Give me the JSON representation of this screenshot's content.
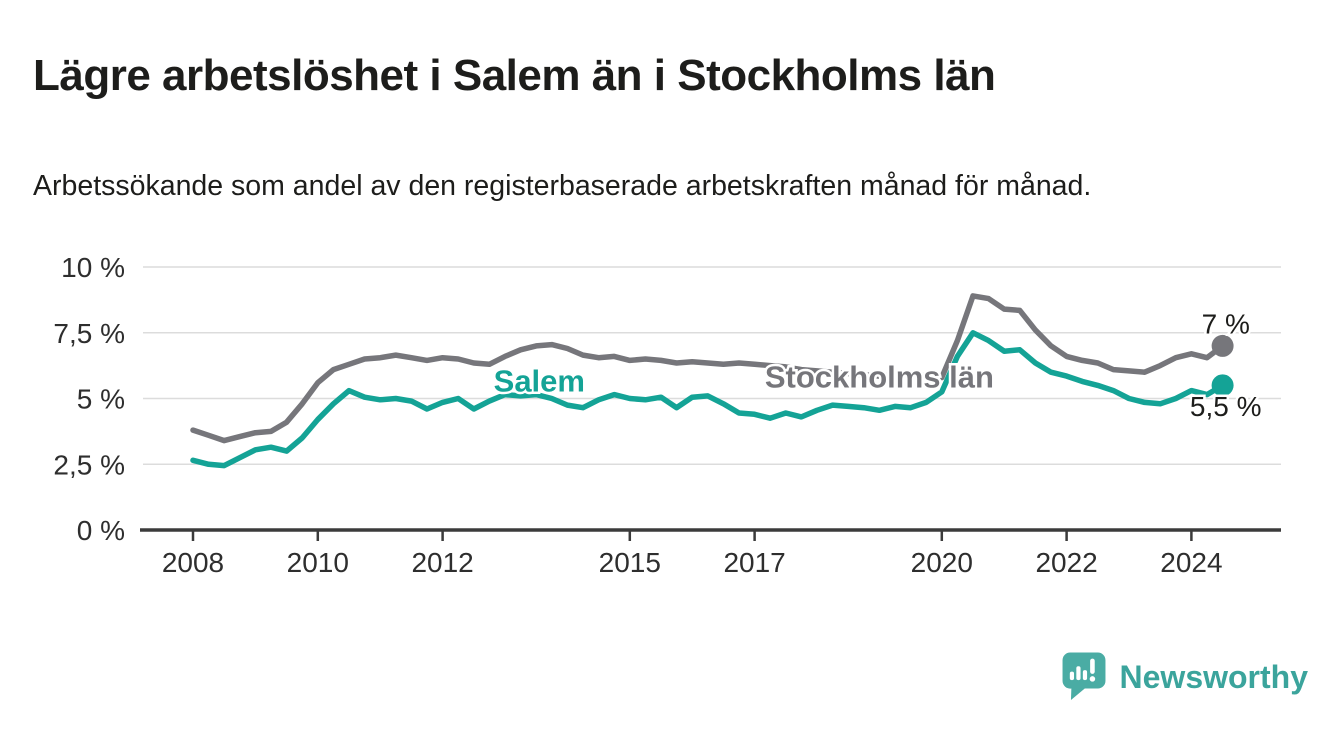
{
  "header": {
    "title": "Lägre arbetslöshet i Salem än i Stockholms län",
    "subtitle": "Arbetssökande som andel av den registerbaserade arbetskraften månad för månad."
  },
  "colors": {
    "salem": "#14a396",
    "stockholm": "#76767b",
    "text_dark": "#1d1d1b",
    "axis_text": "#2e2e2e",
    "gridline": "#dcdcdc",
    "axis_line": "#3b3b3b",
    "brand_teal": "#3ba49c",
    "brand_mark": "#4aaca4"
  },
  "chart_data": {
    "type": "line",
    "title": "",
    "xlabel": "",
    "ylabel": "",
    "unit": "%",
    "ylim": [
      0,
      10
    ],
    "grid": "horizontal",
    "legend_position": "inline-labels",
    "x": [
      2008,
      2008.25,
      2008.5,
      2008.75,
      2009,
      2009.25,
      2009.5,
      2009.75,
      2010,
      2010.25,
      2010.5,
      2010.75,
      2011,
      2011.25,
      2011.5,
      2011.75,
      2012,
      2012.25,
      2012.5,
      2012.75,
      2013,
      2013.25,
      2013.5,
      2013.75,
      2014,
      2014.25,
      2014.5,
      2014.75,
      2015,
      2015.25,
      2015.5,
      2015.75,
      2016,
      2016.25,
      2016.5,
      2016.75,
      2017,
      2017.25,
      2017.5,
      2017.75,
      2018,
      2018.25,
      2018.5,
      2018.75,
      2019,
      2019.25,
      2019.5,
      2019.75,
      2020,
      2020.25,
      2020.5,
      2020.75,
      2021,
      2021.25,
      2021.5,
      2021.75,
      2022,
      2022.25,
      2022.5,
      2022.75,
      2023,
      2023.25,
      2023.5,
      2023.75,
      2024,
      2024.25,
      2024.5
    ],
    "series": [
      {
        "name": "Stockholms län",
        "color": "#76767b",
        "end_label": "7 %",
        "end_value": 7.0,
        "values": [
          3.8,
          3.6,
          3.4,
          3.55,
          3.7,
          3.75,
          4.1,
          4.8,
          5.6,
          6.1,
          6.3,
          6.5,
          6.55,
          6.65,
          6.55,
          6.45,
          6.55,
          6.5,
          6.35,
          6.3,
          6.6,
          6.85,
          7.0,
          7.05,
          6.9,
          6.65,
          6.55,
          6.6,
          6.45,
          6.5,
          6.45,
          6.35,
          6.4,
          6.35,
          6.3,
          6.35,
          6.3,
          6.25,
          6.2,
          6.1,
          6.05,
          6.0,
          5.95,
          5.9,
          5.85,
          5.9,
          5.95,
          5.85,
          5.8,
          7.2,
          8.9,
          8.8,
          8.4,
          8.35,
          7.6,
          7.0,
          6.6,
          6.45,
          6.35,
          6.1,
          6.05,
          6.0,
          6.25,
          6.55,
          6.7,
          6.55,
          7.0
        ]
      },
      {
        "name": "Salem",
        "color": "#14a396",
        "end_label": "5,5 %",
        "end_value": 5.5,
        "values": [
          2.65,
          2.5,
          2.45,
          2.75,
          3.05,
          3.15,
          3.0,
          3.5,
          4.2,
          4.8,
          5.3,
          5.05,
          4.95,
          5.0,
          4.9,
          4.6,
          4.85,
          5.0,
          4.6,
          4.9,
          5.15,
          5.1,
          5.15,
          5.0,
          4.75,
          4.65,
          4.95,
          5.15,
          5.0,
          4.95,
          5.05,
          4.65,
          5.05,
          5.1,
          4.8,
          4.45,
          4.4,
          4.25,
          4.45,
          4.3,
          4.55,
          4.75,
          4.7,
          4.65,
          4.55,
          4.7,
          4.65,
          4.85,
          5.25,
          6.6,
          7.5,
          7.2,
          6.8,
          6.85,
          6.35,
          6.0,
          5.85,
          5.65,
          5.5,
          5.3,
          5.0,
          4.85,
          4.8,
          5.0,
          5.3,
          5.15,
          5.5
        ]
      }
    ],
    "yticks": [
      {
        "value": 0,
        "label": "0 %"
      },
      {
        "value": 2.5,
        "label": "2,5 %"
      },
      {
        "value": 5,
        "label": "5 %"
      },
      {
        "value": 7.5,
        "label": "7,5 %"
      },
      {
        "value": 10,
        "label": "10 %"
      }
    ],
    "xticks": [
      {
        "value": 2008,
        "label": "2008"
      },
      {
        "value": 2010,
        "label": "2010"
      },
      {
        "value": 2012,
        "label": "2012"
      },
      {
        "value": 2015,
        "label": "2015"
      },
      {
        "value": 2017,
        "label": "2017"
      },
      {
        "value": 2020,
        "label": "2020"
      },
      {
        "value": 2022,
        "label": "2022"
      },
      {
        "value": 2024,
        "label": "2024"
      }
    ],
    "annotations": [
      {
        "id": "salem-series-label",
        "text": "Salem",
        "year": 2013.55,
        "value": 5.7,
        "color": "#14a396",
        "bold": true,
        "size": 31
      },
      {
        "id": "stockholm-series-label",
        "text": "Stockholms län",
        "year": 2019.0,
        "value": 5.85,
        "color": "#76767b",
        "bold": true,
        "size": 31
      },
      {
        "id": "stockholm-end-label",
        "text": "7 %",
        "year": 2024.55,
        "value": 7.85,
        "color": "#1d1d1b",
        "bold": false,
        "size": 28
      },
      {
        "id": "salem-end-label",
        "text": "5,5 %",
        "year": 2024.55,
        "value": 4.72,
        "color": "#1d1d1b",
        "bold": false,
        "size": 28
      }
    ]
  },
  "footer": {
    "brand": "Newsworthy"
  }
}
